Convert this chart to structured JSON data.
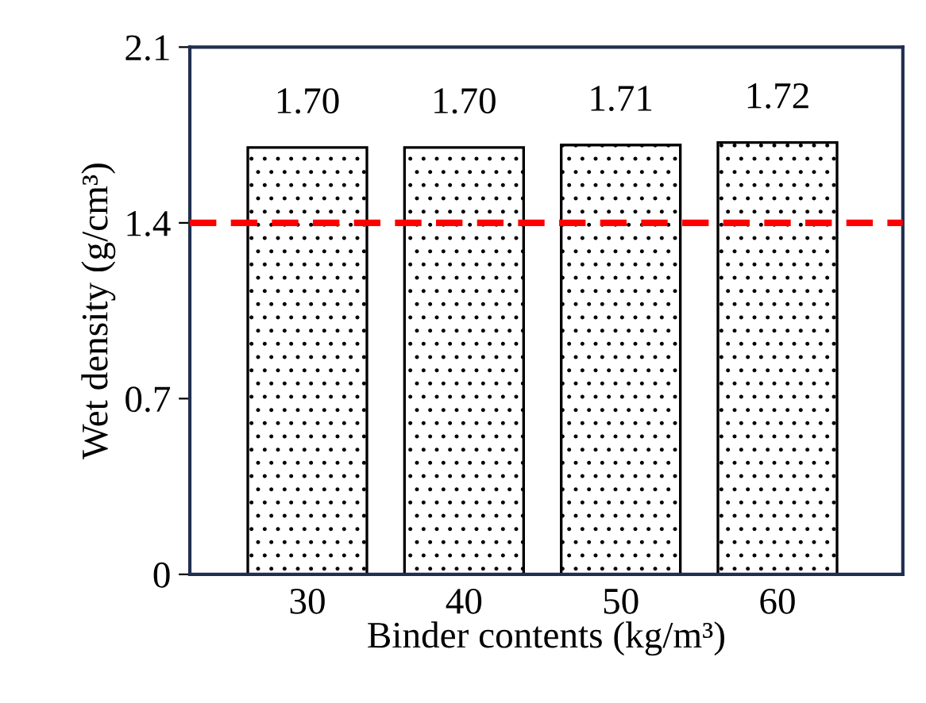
{
  "chart_data": {
    "type": "bar",
    "xlabel": "Binder contents (kg/m³)",
    "ylabel": "Wet density (g/cm³)",
    "categories": [
      "30",
      "40",
      "50",
      "60"
    ],
    "values": [
      1.7,
      1.7,
      1.71,
      1.72
    ],
    "value_labels": [
      "1.70",
      "1.70",
      "1.71",
      "1.72"
    ],
    "ylim": [
      0,
      2.1
    ],
    "yticks": [
      0,
      0.7,
      1.4,
      2.1
    ],
    "ref_lines": [
      {
        "axis": "y",
        "value": 1.4,
        "color": "#ff0000",
        "line_style": "dashed"
      }
    ],
    "grid": false,
    "legend": false
  }
}
